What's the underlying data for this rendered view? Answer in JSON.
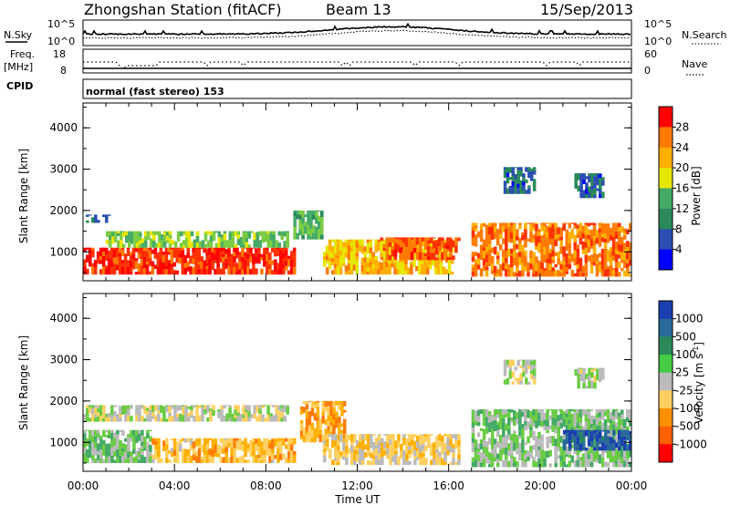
{
  "header": {
    "station": "Zhongshan Station (fitACF)",
    "beam": "Beam 13",
    "date": "15/Sep/2013"
  },
  "top_panels": {
    "nsky_label": "N.Sky",
    "nsky_ticks": [
      "10^5",
      "10^0"
    ],
    "nsearch_label": "N.Search",
    "nsearch_ticks": [
      "10^5",
      "10^0"
    ],
    "freq_label": "Freq.",
    "freq_unit": "[MHz]",
    "freq_ticks": [
      "18",
      "8"
    ],
    "nave_label": "Nave",
    "nave_ticks": [
      "60",
      "0"
    ],
    "cpid_label": "CPID",
    "cpid_value": "normal (fast stereo) 153"
  },
  "axes": {
    "ylabel": "Slant Range [km]",
    "yticks": [
      "4000",
      "3000",
      "2000",
      "1000"
    ],
    "xticks": [
      "00:00",
      "04:00",
      "08:00",
      "12:00",
      "16:00",
      "20:00",
      "00:00"
    ],
    "xlabel": "Time UT"
  },
  "power_scale": {
    "label": "Power [dB]",
    "ticks": [
      "28",
      "24",
      "20",
      "16",
      "12",
      "8",
      "4"
    ],
    "colors": [
      "#ff0000",
      "#ff7a00",
      "#ffb000",
      "#e6e600",
      "#44aa66",
      "#2a8a5a",
      "#2a4fb0",
      "#0000ff"
    ]
  },
  "velocity_scale": {
    "label": "Velocity [m s",
    "label_sup": "-1",
    "label_end": "]",
    "ticks": [
      "1000",
      "500",
      "100",
      "25",
      "-25",
      "-100",
      "-500",
      "-1000"
    ],
    "colors": [
      "#1a3fb0",
      "#2a6a9a",
      "#2a8a5a",
      "#44cc44",
      "#bbbbbb",
      "#ffd060",
      "#ff9000",
      "#ff6000",
      "#ff0000"
    ]
  },
  "chart_data": [
    {
      "type": "heatmap",
      "title": "Zhongshan Station (fitACF) Beam 13 15/Sep/2013",
      "quantity": "Power [dB]",
      "xlabel": "Time UT",
      "ylabel": "Slant Range [km]",
      "xlim": [
        0,
        24
      ],
      "ylim": [
        300,
        4600
      ],
      "colorbar_range": [
        0,
        32
      ],
      "regions": [
        {
          "t0": 0.0,
          "t1": 9.3,
          "r0": 450,
          "r1": 1100,
          "level": 28
        },
        {
          "t0": 1.0,
          "t1": 9.0,
          "r0": 1100,
          "r1": 1500,
          "level": 14
        },
        {
          "t0": 0.0,
          "t1": 1.2,
          "r0": 1700,
          "r1": 1900,
          "level": 6
        },
        {
          "t0": 9.2,
          "t1": 10.5,
          "r0": 1300,
          "r1": 2000,
          "level": 12
        },
        {
          "t0": 10.5,
          "t1": 16.2,
          "r0": 450,
          "r1": 1300,
          "level": 20
        },
        {
          "t0": 13.0,
          "t1": 16.5,
          "r0": 800,
          "r1": 1350,
          "level": 26
        },
        {
          "t0": 17.0,
          "t1": 24.0,
          "r0": 400,
          "r1": 1700,
          "level": 24
        },
        {
          "t0": 18.4,
          "t1": 19.8,
          "r0": 2400,
          "r1": 3050,
          "level": 6
        },
        {
          "t0": 21.5,
          "t1": 22.8,
          "r0": 2300,
          "r1": 2900,
          "level": 6
        }
      ]
    },
    {
      "type": "heatmap",
      "quantity": "Velocity [m s-1]",
      "xlabel": "Time UT",
      "ylabel": "Slant Range [km]",
      "xlim": [
        0,
        24
      ],
      "ylim": [
        300,
        4600
      ],
      "colorbar_range": [
        -1000,
        1000
      ],
      "regions": [
        {
          "t0": 0.0,
          "t1": 3.0,
          "r0": 500,
          "r1": 1300,
          "level": 150
        },
        {
          "t0": 3.0,
          "t1": 9.3,
          "r0": 500,
          "r1": 1100,
          "level": -300
        },
        {
          "t0": 0.0,
          "t1": 9.0,
          "r0": 1500,
          "r1": 1900,
          "level": 0
        },
        {
          "t0": 9.5,
          "t1": 11.5,
          "r0": 1000,
          "r1": 2000,
          "level": -400
        },
        {
          "t0": 10.5,
          "t1": 16.5,
          "r0": 450,
          "r1": 1200,
          "level": -200
        },
        {
          "t0": 17.0,
          "t1": 24.0,
          "r0": 400,
          "r1": 1800,
          "level": 150
        },
        {
          "t0": 21.0,
          "t1": 24.0,
          "r0": 800,
          "r1": 1300,
          "level": 800
        },
        {
          "t0": 18.4,
          "t1": 19.8,
          "r0": 2400,
          "r1": 3000,
          "level": 0
        },
        {
          "t0": 21.5,
          "t1": 22.8,
          "r0": 2300,
          "r1": 2800,
          "level": 0
        }
      ]
    }
  ]
}
